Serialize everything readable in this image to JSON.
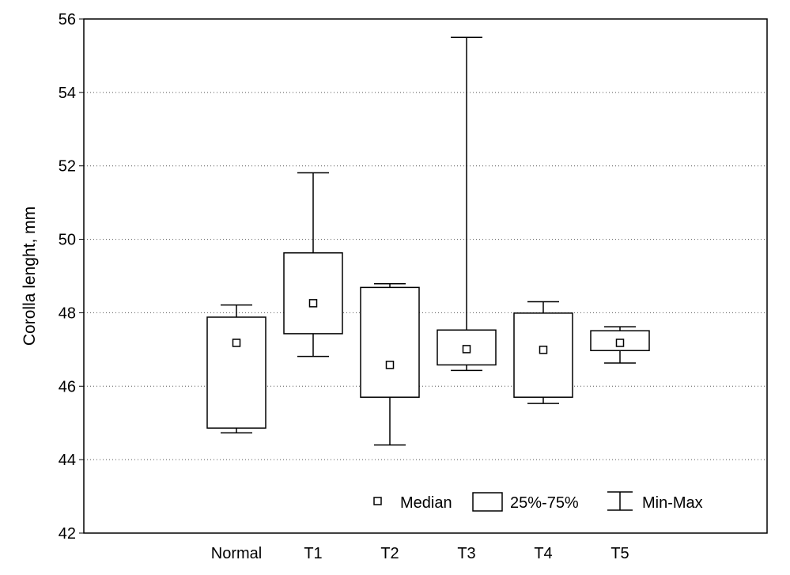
{
  "chart_data": {
    "type": "boxplot",
    "title": "",
    "xlabel": "",
    "ylabel": "Corolla lenght, mm",
    "ylim": [
      42,
      56
    ],
    "yticks": [
      42,
      44,
      46,
      48,
      50,
      52,
      54,
      56
    ],
    "grid": true,
    "legend_position": "bottom-right",
    "categories": [
      "Normal",
      "T1",
      "T2",
      "T3",
      "T4",
      "T5"
    ],
    "series": [
      {
        "category": "Normal",
        "min": 44.73,
        "q1": 44.86,
        "median": 47.18,
        "q3": 47.88,
        "max": 48.21
      },
      {
        "category": "T1",
        "min": 46.81,
        "q1": 47.43,
        "median": 48.26,
        "q3": 49.63,
        "max": 51.81
      },
      {
        "category": "T2",
        "min": 44.4,
        "q1": 45.7,
        "median": 46.58,
        "q3": 48.69,
        "max": 48.79
      },
      {
        "category": "T3",
        "min": 46.43,
        "q1": 46.58,
        "median": 47.01,
        "q3": 47.53,
        "max": 55.5
      },
      {
        "category": "T4",
        "min": 45.53,
        "q1": 45.7,
        "median": 46.99,
        "q3": 47.99,
        "max": 48.3
      },
      {
        "category": "T5",
        "min": 46.63,
        "q1": 46.97,
        "median": 47.18,
        "q3": 47.51,
        "max": 47.62
      }
    ],
    "legend": {
      "median": "Median",
      "box": "25%-75%",
      "whisker": "Min-Max"
    }
  }
}
